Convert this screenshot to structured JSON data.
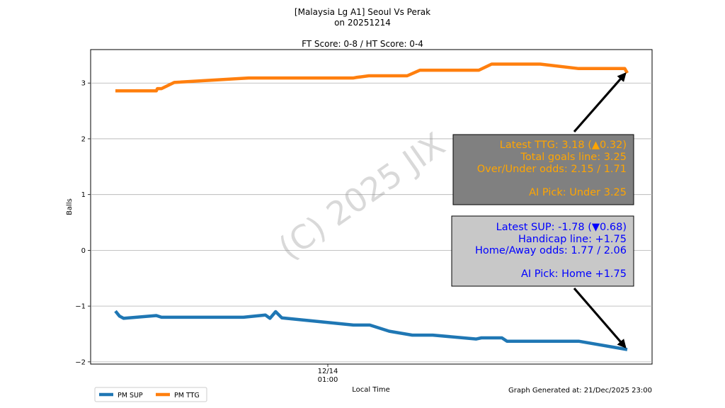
{
  "chart_data": {
    "type": "line",
    "title_lines": [
      "[Malaysia Lg A1] Seoul Vs Perak",
      "on 20251214",
      "",
      "FT Score: 0-8 / HT Score: 0-4"
    ],
    "xlabel": "Local Time",
    "ylabel": "Balls",
    "x_tick": {
      "line1": "12/14",
      "line2": "01:00"
    },
    "ylim": [
      -2.04,
      3.6
    ],
    "y_ticks": [
      {
        "value": 3,
        "label": "3"
      },
      {
        "value": 2,
        "label": "2"
      },
      {
        "value": 1,
        "label": "1"
      },
      {
        "value": 0,
        "label": "0"
      },
      {
        "value": -1,
        "label": "−1"
      },
      {
        "value": -2,
        "label": "−2"
      }
    ],
    "grid": "horizontal",
    "series": [
      {
        "name": "PM SUP",
        "color": "#1f77b4",
        "points": [
          [
            0.0,
            -1.09
          ],
          [
            0.008,
            -1.18
          ],
          [
            0.016,
            -1.22
          ],
          [
            0.08,
            -1.17
          ],
          [
            0.09,
            -1.2
          ],
          [
            0.25,
            -1.2
          ],
          [
            0.293,
            -1.16
          ],
          [
            0.302,
            -1.22
          ],
          [
            0.313,
            -1.1
          ],
          [
            0.325,
            -1.21
          ],
          [
            0.465,
            -1.34
          ],
          [
            0.497,
            -1.34
          ],
          [
            0.535,
            -1.45
          ],
          [
            0.58,
            -1.52
          ],
          [
            0.62,
            -1.52
          ],
          [
            0.705,
            -1.59
          ],
          [
            0.715,
            -1.57
          ],
          [
            0.755,
            -1.57
          ],
          [
            0.765,
            -1.63
          ],
          [
            0.905,
            -1.63
          ],
          [
            1.0,
            -1.78
          ]
        ]
      },
      {
        "name": "PM TTG",
        "color": "#ff7f0e",
        "points": [
          [
            0.0,
            2.86
          ],
          [
            0.08,
            2.86
          ],
          [
            0.082,
            2.9
          ],
          [
            0.09,
            2.9
          ],
          [
            0.115,
            3.01
          ],
          [
            0.26,
            3.09
          ],
          [
            0.465,
            3.09
          ],
          [
            0.47,
            3.1
          ],
          [
            0.495,
            3.13
          ],
          [
            0.57,
            3.13
          ],
          [
            0.595,
            3.23
          ],
          [
            0.71,
            3.23
          ],
          [
            0.735,
            3.34
          ],
          [
            0.83,
            3.34
          ],
          [
            0.905,
            3.26
          ],
          [
            0.995,
            3.26
          ],
          [
            1.0,
            3.18
          ]
        ]
      }
    ],
    "legend": {
      "position": "bottom-left",
      "items": [
        "PM SUP",
        "PM TTG"
      ]
    },
    "annotations": [
      {
        "name": "ttg-info",
        "lines": [
          "Latest TTG: 3.18 (▲0.32)",
          "Total goals line: 3.25",
          "Over/Under odds: 2.15 / 1.71",
          "",
          "AI Pick: Under 3.25"
        ],
        "text_color": "#ffa500",
        "box_color": "#808080"
      },
      {
        "name": "sup-info",
        "lines": [
          "Latest SUP: -1.78 (▼0.68)",
          "Handicap line: +1.75",
          "Home/Away odds: 1.77 / 2.06",
          "",
          "AI Pick: Home +1.75"
        ],
        "text_color": "#0000ff",
        "box_color": "#c8c8c8"
      }
    ],
    "watermark": "(C) 2025 JIX",
    "footer": "Graph Generated at: 21/Dec/2025 23:00"
  }
}
